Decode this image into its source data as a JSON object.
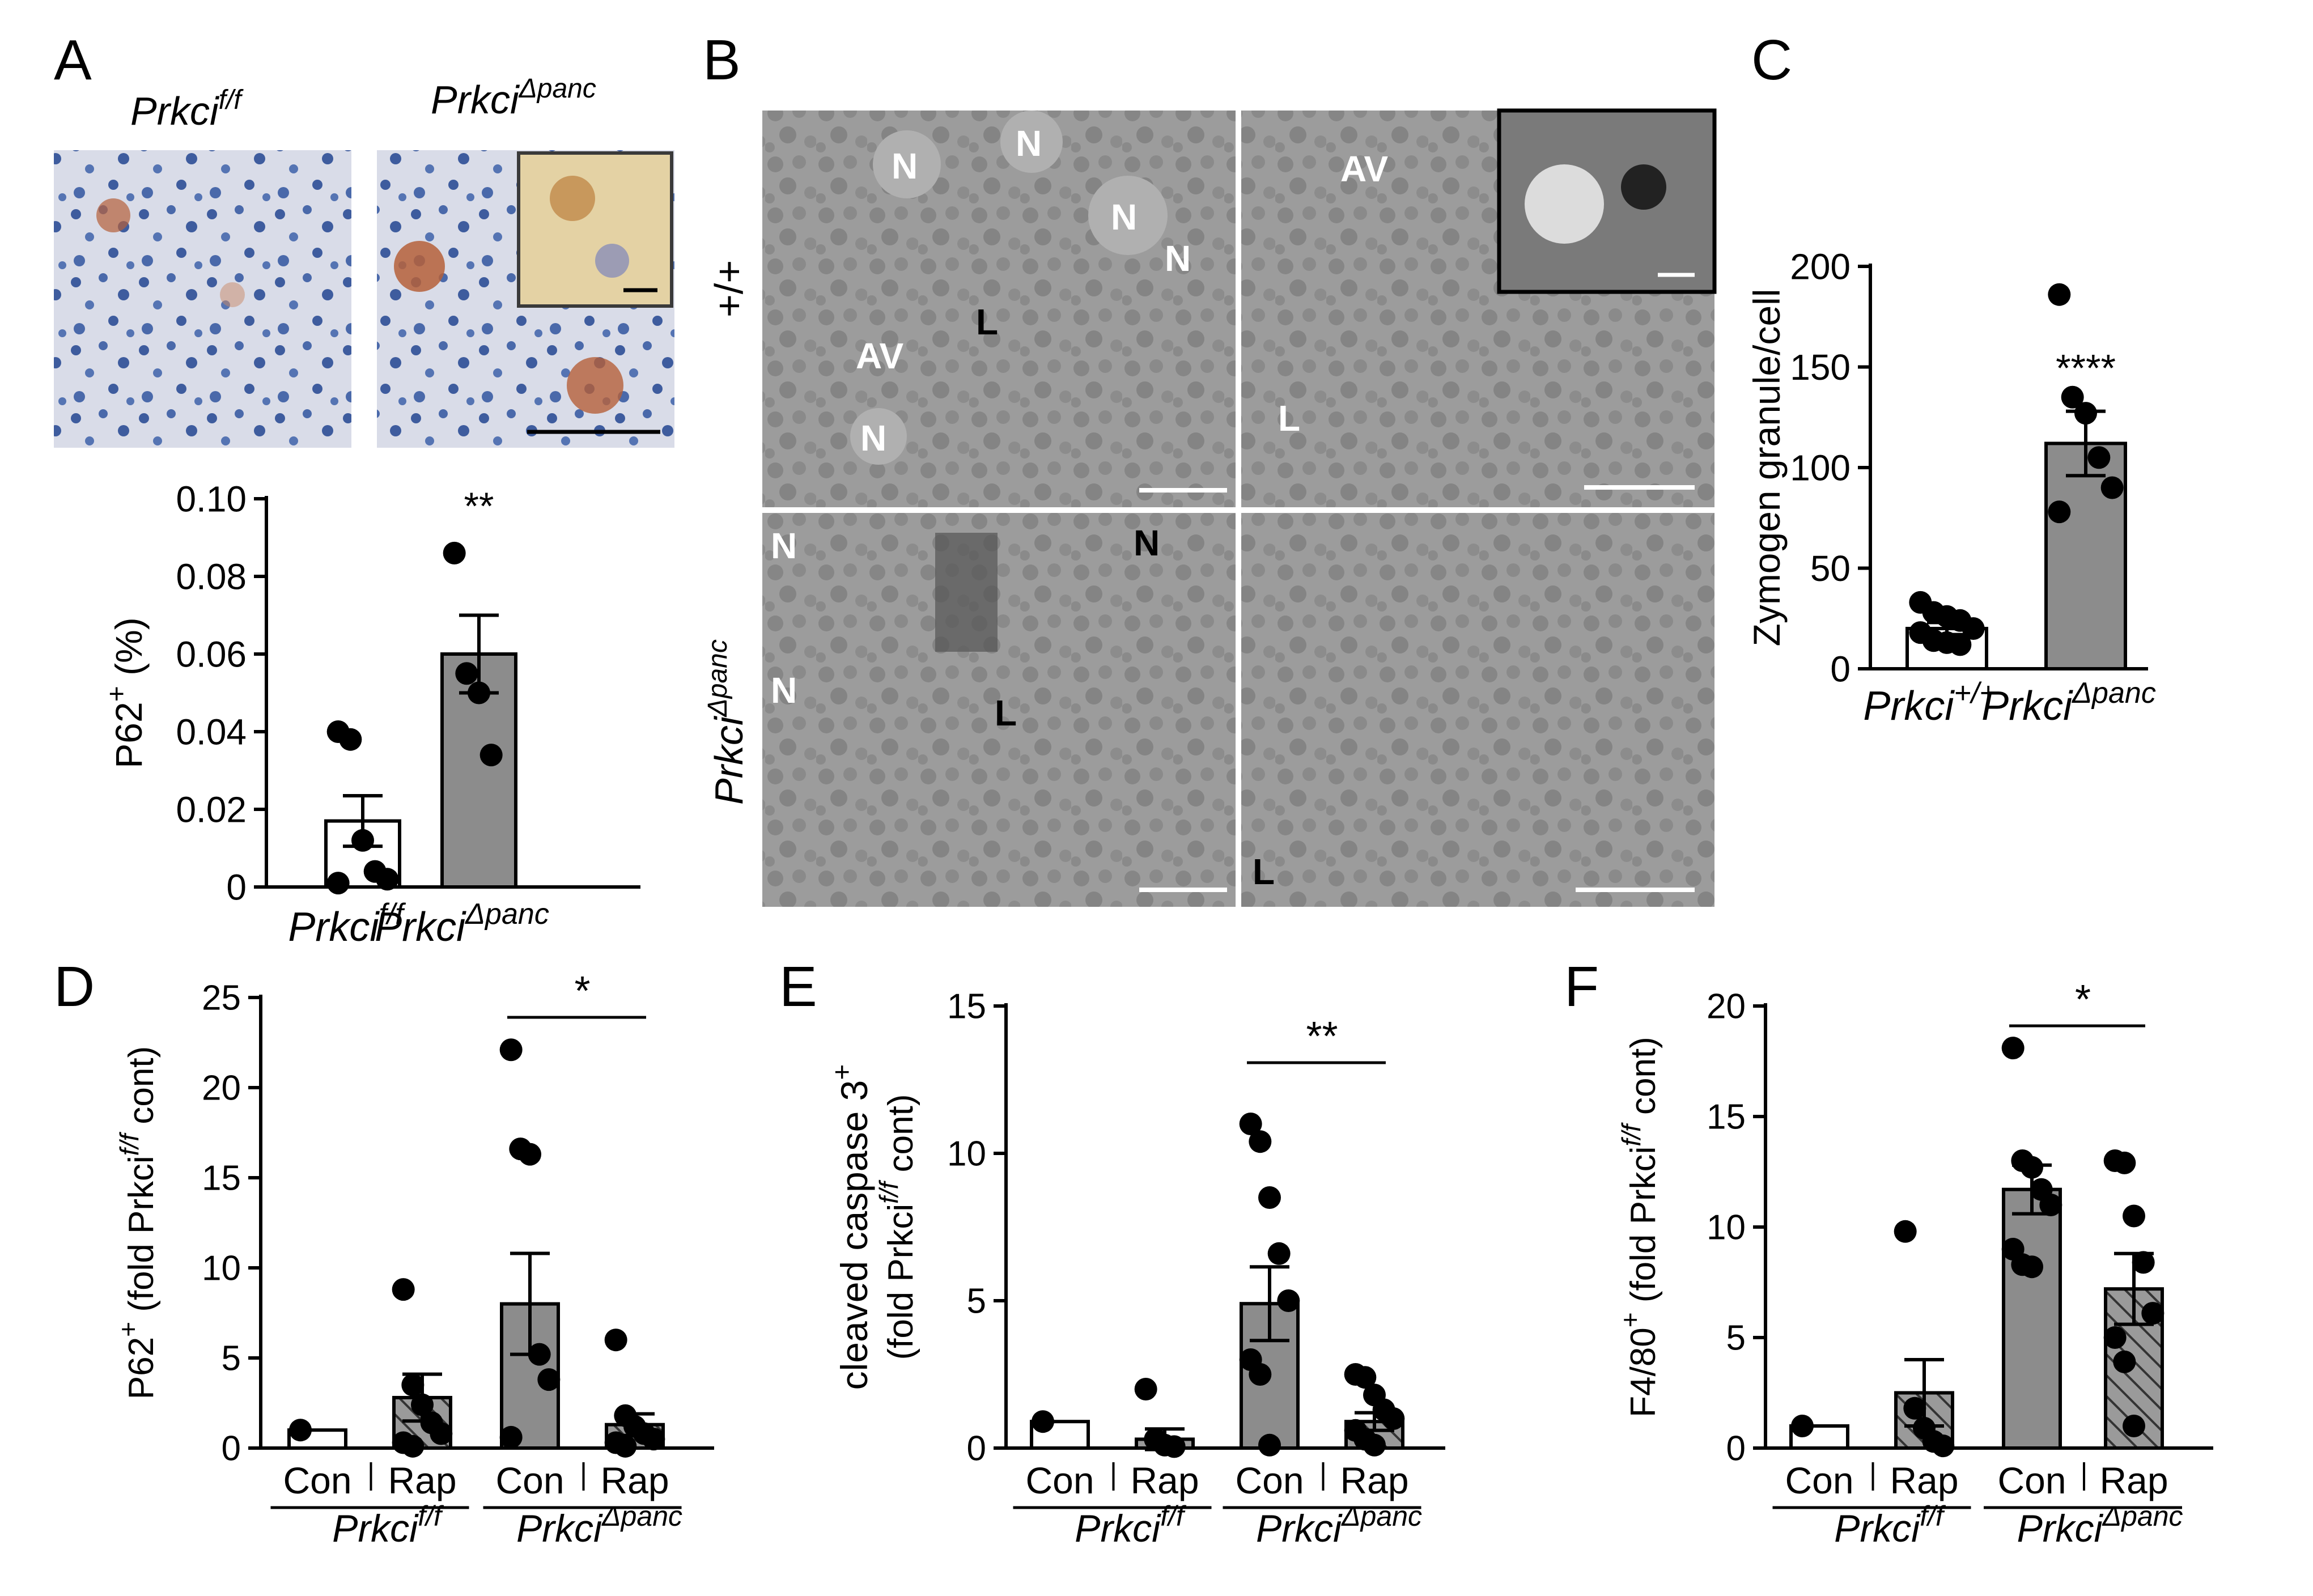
{
  "panels": {
    "A": {
      "letter": "A",
      "img_label_left": "Prkci",
      "img_label_left_sup": "f/f",
      "img_label_right": "Prkci",
      "img_label_right_sup": "Δpanc"
    },
    "B": {
      "letter": "B",
      "row1_label": "+/+",
      "row2_label": "Prkci",
      "row2_label_sup": "Δpanc",
      "em_letters_top_left": [
        "N",
        "N",
        "N",
        "N",
        "N",
        "L",
        "AV"
      ],
      "em_letters_top_right": [
        "AV",
        "L"
      ],
      "em_letters_bottom_left": [
        "N",
        "N",
        "N",
        "L"
      ],
      "em_letters_bottom_right": [
        "L"
      ]
    },
    "C": {
      "letter": "C"
    },
    "D": {
      "letter": "D"
    },
    "E": {
      "letter": "E"
    },
    "F": {
      "letter": "F"
    }
  },
  "colors": {
    "open_bar": "#ffffff",
    "grey_bar": "#8c8c8c",
    "dark_grey_bar": "#777777",
    "point": "#000000",
    "ihc_bg": "#d9dce8",
    "ihc_nucleus": "#3e5c9e",
    "ihc_stain": "#b5603a",
    "em_bg": "#9a9a9a"
  },
  "chart_data": [
    {
      "panel": "A",
      "type": "bar",
      "categories": [
        "Prkci f/f",
        "Prkci Δpanc"
      ],
      "category_labels": [
        {
          "base": "Prkci",
          "sup": "f/f"
        },
        {
          "base": "Prkci",
          "sup": "Δpanc"
        }
      ],
      "values": [
        0.017,
        0.06
      ],
      "sem": [
        0.0065,
        0.01
      ],
      "points": [
        [
          0.04,
          0.038,
          0.012,
          0.004,
          0.002,
          0.001
        ],
        [
          0.086,
          0.055,
          0.05,
          0.034
        ]
      ],
      "bar_styles": [
        "open",
        "grey"
      ],
      "ylabel": "P62",
      "ylabel_sup": "+",
      "ylabel_unit": "(%)",
      "ylim": [
        0,
        0.1
      ],
      "yticks": [
        "0",
        "0.02",
        "0.04",
        "0.06",
        "0.08",
        "0.10"
      ],
      "significance": "**"
    },
    {
      "panel": "C",
      "type": "bar",
      "categories": [
        "Prkci +/+",
        "Prkci Δpanc"
      ],
      "category_labels": [
        {
          "base": "Prkci",
          "sup": "+/+"
        },
        {
          "base": "Prkci",
          "sup": "Δpanc"
        }
      ],
      "values": [
        20,
        112
      ],
      "sem": [
        3,
        16
      ],
      "points": [
        [
          33,
          28,
          26,
          24,
          20,
          18,
          14,
          13,
          12
        ],
        [
          186,
          135,
          127,
          105,
          90,
          78
        ]
      ],
      "bar_styles": [
        "open",
        "grey"
      ],
      "ylabel": "Zymogen granule/cell",
      "ylim": [
        0,
        200
      ],
      "yticks": [
        "0",
        "50",
        "100",
        "150",
        "200"
      ],
      "significance": "****"
    },
    {
      "panel": "D",
      "type": "bar",
      "categories": [
        "Con",
        "Rap",
        "Con",
        "Rap"
      ],
      "groups": [
        {
          "base": "Prkci",
          "sup": "f/f"
        },
        {
          "base": "Prkci",
          "sup": "Δpanc"
        }
      ],
      "values": [
        1.0,
        2.8,
        8.0,
        1.3
      ],
      "sem": [
        0,
        1.3,
        2.8,
        0.6
      ],
      "points": [
        [
          1.0
        ],
        [
          8.8,
          3.5,
          2.4,
          1.4,
          0.8,
          0.3,
          0.1
        ],
        [
          22.1,
          16.6,
          16.3,
          5.2,
          3.8,
          0.6
        ],
        [
          6.0,
          1.8,
          1.2,
          0.8,
          0.5,
          0.3,
          0.1
        ]
      ],
      "bar_styles": [
        "open",
        "hatched",
        "grey",
        "hatched"
      ],
      "ylabel": "P62",
      "ylabel_sup": "+",
      "ylabel_paren": "(fold Prkci",
      "ylabel_paren_sup": "f/f",
      "ylabel_paren_end": " cont)",
      "ylim": [
        0,
        25
      ],
      "yticks": [
        "0",
        "5",
        "10",
        "15",
        "20",
        "25"
      ],
      "significance": "*"
    },
    {
      "panel": "E",
      "type": "bar",
      "categories": [
        "Con",
        "Rap",
        "Con",
        "Rap"
      ],
      "groups": [
        {
          "base": "Prkci",
          "sup": "f/f"
        },
        {
          "base": "Prkci",
          "sup": "Δpanc"
        }
      ],
      "values": [
        0.9,
        0.3,
        4.9,
        0.9
      ],
      "sem": [
        0,
        0.35,
        1.25,
        0.3
      ],
      "points": [
        [
          0.9
        ],
        [
          2.0,
          0.3,
          0.1,
          0.05
        ],
        [
          11.0,
          10.4,
          8.5,
          6.6,
          5.0,
          3.0,
          2.5,
          0.1
        ],
        [
          2.5,
          2.4,
          1.8,
          1.3,
          1.0,
          0.6,
          0.3,
          0.1
        ]
      ],
      "bar_styles": [
        "open",
        "hatched",
        "grey",
        "hatched"
      ],
      "ylabel": "cleaved caspase 3",
      "ylabel_sup": "+",
      "ylabel_paren": "(fold Prkci",
      "ylabel_paren_sup": "f/f",
      "ylabel_paren_end": " cont)",
      "ylim": [
        0,
        15
      ],
      "yticks": [
        "0",
        "5",
        "10",
        "15"
      ],
      "significance": "**"
    },
    {
      "panel": "F",
      "type": "bar",
      "categories": [
        "Con",
        "Rap",
        "Con",
        "Rap"
      ],
      "groups": [
        {
          "base": "Prkci",
          "sup": "f/f"
        },
        {
          "base": "Prkci",
          "sup": "Δpanc"
        }
      ],
      "values": [
        1.0,
        2.5,
        11.7,
        7.2
      ],
      "sem": [
        0,
        1.5,
        1.1,
        1.6
      ],
      "points": [
        [
          1.0
        ],
        [
          9.8,
          1.8,
          0.9,
          0.3,
          0.1
        ],
        [
          18.1,
          13.0,
          12.7,
          11.7,
          11.0,
          9.0,
          8.3,
          8.2
        ],
        [
          13.0,
          12.9,
          10.5,
          8.4,
          6.1,
          5.0,
          3.9,
          1.0
        ]
      ],
      "bar_styles": [
        "open",
        "hatched",
        "grey",
        "hatched"
      ],
      "ylabel": "F4/80",
      "ylabel_sup": "+",
      "ylabel_paren": "(fold Prkci",
      "ylabel_paren_sup": "f/f",
      "ylabel_paren_end": " cont)",
      "ylim": [
        0,
        20
      ],
      "yticks": [
        "0",
        "5",
        "10",
        "15",
        "20"
      ],
      "significance": "*"
    }
  ]
}
